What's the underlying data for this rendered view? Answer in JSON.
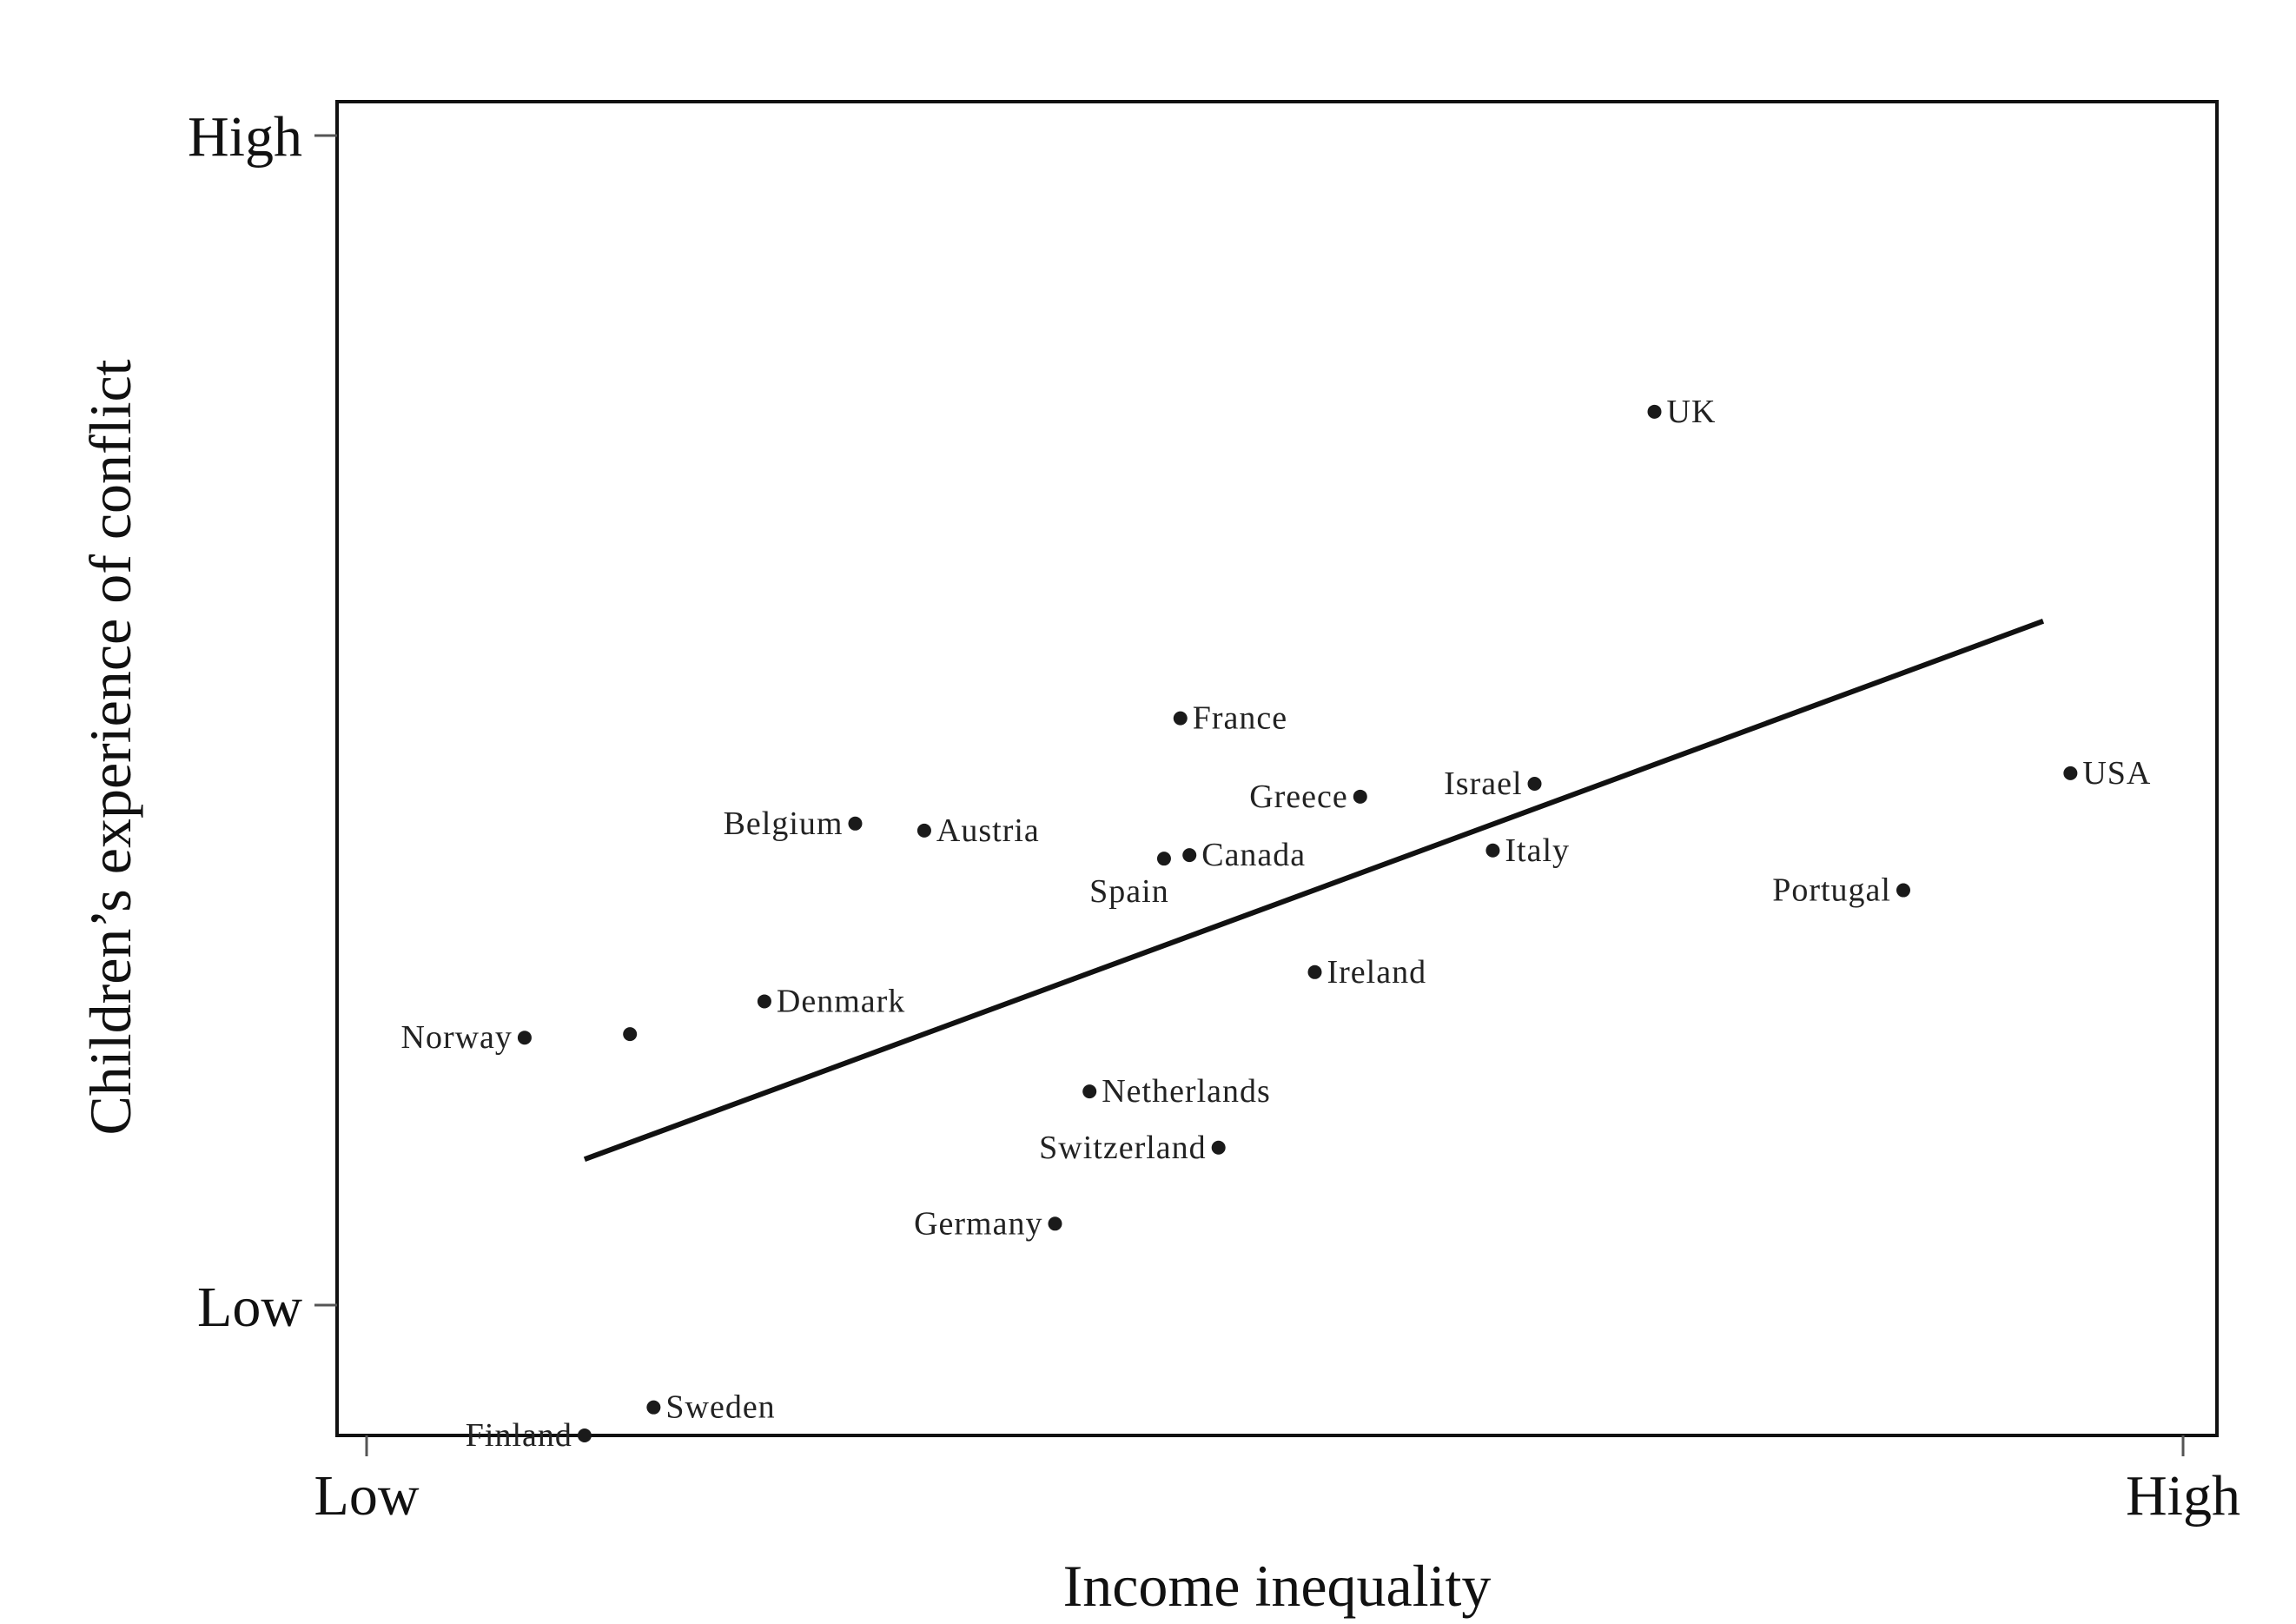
{
  "chart_data": {
    "type": "scatter",
    "title": "",
    "xlabel": "Income inequality",
    "ylabel": "Children’s experience of conflict",
    "x_tick_labels": [
      "Low",
      "High"
    ],
    "y_tick_labels": [
      "High",
      "Low"
    ],
    "xlim": [
      0,
      100
    ],
    "ylim": [
      -8,
      106
    ],
    "grid": false,
    "legend": "none",
    "point_color": "#1a1a1a",
    "trend_color": "#111111",
    "points": [
      {
        "label": "Finland",
        "x": 12.0,
        "y": -8.0,
        "label_side": "left"
      },
      {
        "label": "Sweden",
        "x": 15.8,
        "y": -5.6,
        "label_side": "right"
      },
      {
        "label": "Norway",
        "x": 8.7,
        "y": 26.0,
        "label_side": "left"
      },
      {
        "label": "Norway",
        "x": 14.5,
        "y": 26.3,
        "label_side": "none"
      },
      {
        "label": "Denmark",
        "x": 21.9,
        "y": 29.1,
        "label_side": "right"
      },
      {
        "label": "Belgium",
        "x": 26.9,
        "y": 44.3,
        "label_side": "left"
      },
      {
        "label": "Austria",
        "x": 30.7,
        "y": 43.7,
        "label_side": "right"
      },
      {
        "label": "Germany",
        "x": 37.9,
        "y": 10.1,
        "label_side": "left"
      },
      {
        "label": "Netherlands",
        "x": 39.8,
        "y": 21.4,
        "label_side": "right"
      },
      {
        "label": "Switzerland",
        "x": 46.9,
        "y": 16.6,
        "label_side": "left"
      },
      {
        "label": "Spain",
        "x": 43.9,
        "y": 41.3,
        "label_side": "below"
      },
      {
        "label": "Canada",
        "x": 45.3,
        "y": 41.6,
        "label_side": "right"
      },
      {
        "label": "France",
        "x": 44.8,
        "y": 53.3,
        "label_side": "right"
      },
      {
        "label": "Greece",
        "x": 54.7,
        "y": 46.6,
        "label_side": "left"
      },
      {
        "label": "Ireland",
        "x": 52.2,
        "y": 31.6,
        "label_side": "right"
      },
      {
        "label": "Italy",
        "x": 62.0,
        "y": 42.0,
        "label_side": "right"
      },
      {
        "label": "Israel",
        "x": 64.3,
        "y": 47.7,
        "label_side": "left"
      },
      {
        "label": "UK",
        "x": 70.9,
        "y": 79.5,
        "label_side": "right"
      },
      {
        "label": "Portugal",
        "x": 84.6,
        "y": 38.6,
        "label_side": "left"
      },
      {
        "label": "USA",
        "x": 93.8,
        "y": 48.6,
        "label_side": "right"
      }
    ],
    "trend_line": {
      "x": [
        12.0,
        92.3
      ],
      "y": [
        15.6,
        61.6
      ]
    }
  }
}
